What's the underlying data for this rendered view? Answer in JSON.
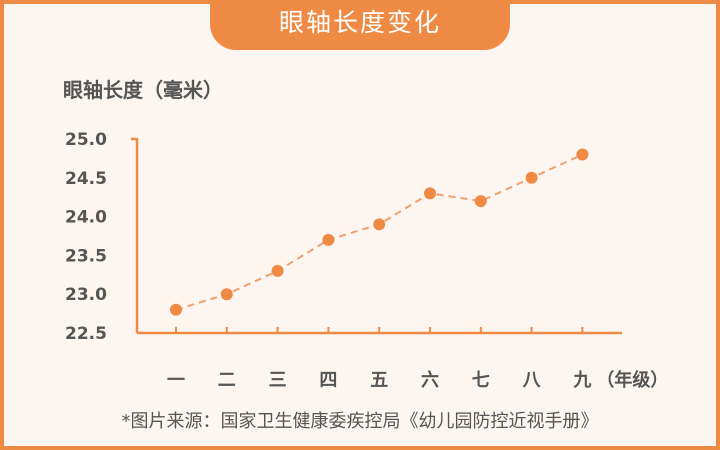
{
  "header": {
    "title": "眼轴长度变化"
  },
  "footer": {
    "source": "*图片来源：国家卫生健康委疾控局《幼儿园防控近视手册》"
  },
  "colors": {
    "accent": "#ef8a45",
    "background": "#fdf6f0",
    "text": "#555555"
  },
  "chart_data": {
    "type": "line",
    "title": "眼轴长度变化",
    "ylabel": "眼轴长度（毫米）",
    "xlabel": "（年级）",
    "categories": [
      "一",
      "二",
      "三",
      "四",
      "五",
      "六",
      "七",
      "八",
      "九"
    ],
    "series": [
      {
        "values": [
          22.8,
          23.0,
          23.3,
          23.7,
          23.9,
          24.3,
          24.2,
          24.5,
          24.8
        ]
      }
    ],
    "ylim": [
      22.5,
      25.0
    ],
    "yticks": [
      "25.0",
      "24.5",
      "24.0",
      "23.5",
      "23.0",
      "22.5"
    ],
    "line_style": "dashed",
    "grid": false
  }
}
